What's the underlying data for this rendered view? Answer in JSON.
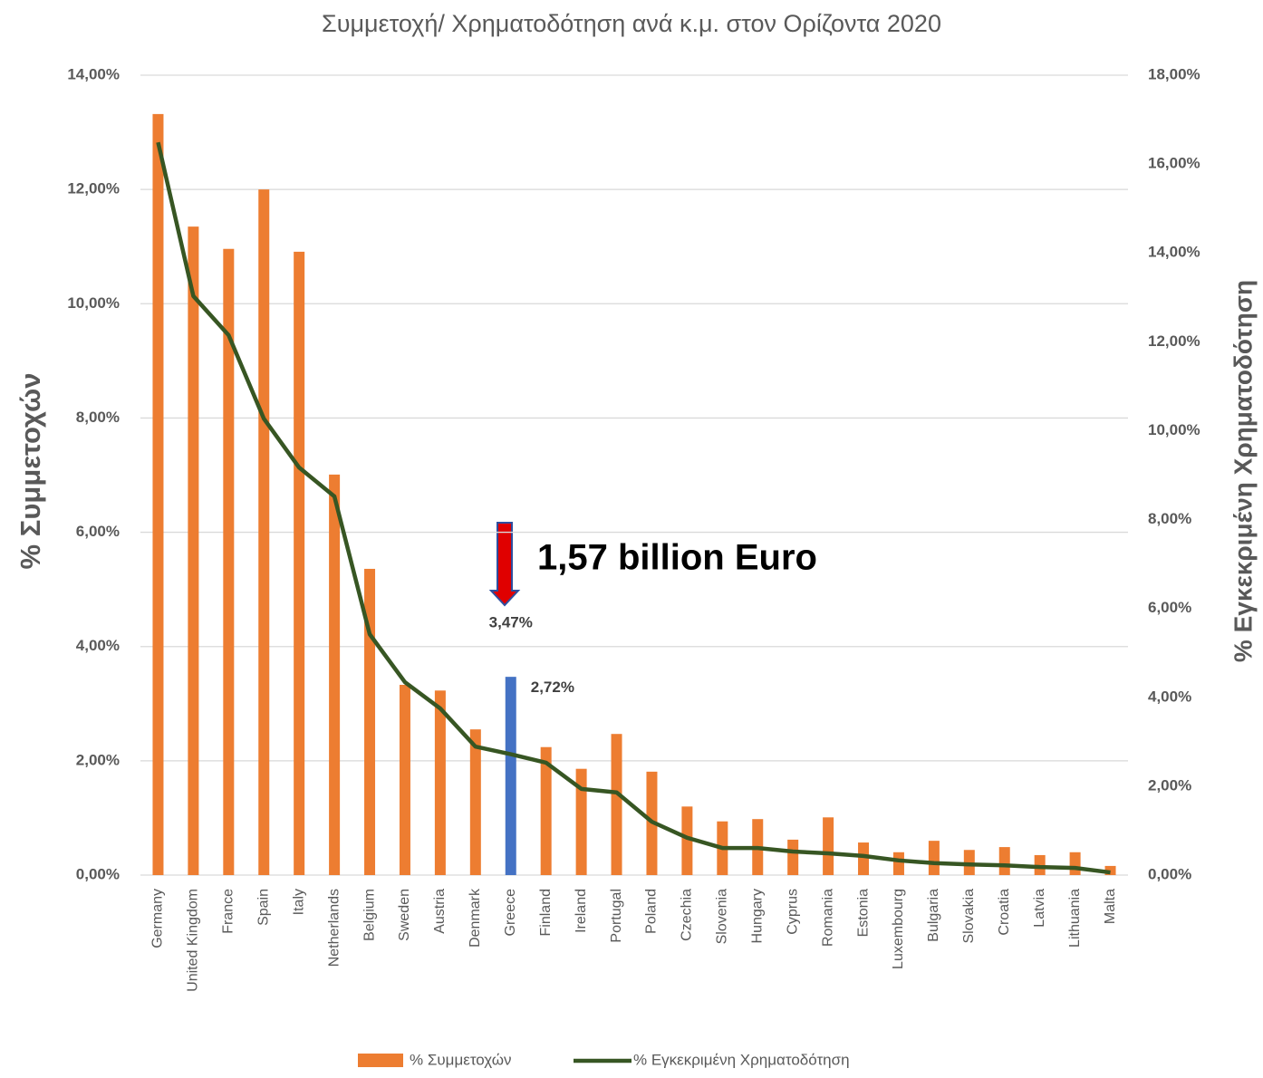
{
  "chart_data": {
    "type": "bar_line",
    "title": "Συμμετοχή/ Χρηματοδότηση ανά κ.μ. στον Ορίζοντα 2020",
    "y_label": "% Συμμετοχών",
    "y2_label": "% Εγκεκριμένη Χρηματοδότηση",
    "annotation": "1,57 billion Euro",
    "categories": [
      "Germany",
      "United Kingdom",
      "France",
      "Spain",
      "Italy",
      "Netherlands",
      "Belgium",
      "Sweden",
      "Austria",
      "Denmark",
      "Greece",
      "Finland",
      "Ireland",
      "Portugal",
      "Poland",
      "Czechia",
      "Slovenia",
      "Hungary",
      "Cyprus",
      "Romania",
      "Estonia",
      "Luxembourg",
      "Bulgaria",
      "Slovakia",
      "Croatia",
      "Latvia",
      "Lithuania",
      "Malta"
    ],
    "series": [
      {
        "name": "% Συμμετοχών",
        "type": "bar",
        "color": "#ed7d31",
        "colors": [
          "#ed7d31",
          "#ed7d31",
          "#ed7d31",
          "#ed7d31",
          "#ed7d31",
          "#ed7d31",
          "#ed7d31",
          "#ed7d31",
          "#ed7d31",
          "#ed7d31",
          "#4472c4",
          "#ed7d31",
          "#ed7d31",
          "#ed7d31",
          "#ed7d31",
          "#ed7d31",
          "#ed7d31",
          "#ed7d31",
          "#ed7d31",
          "#ed7d31",
          "#ed7d31",
          "#ed7d31",
          "#ed7d31",
          "#ed7d31",
          "#ed7d31",
          "#ed7d31",
          "#ed7d31",
          "#ed7d31"
        ],
        "values": [
          13.32,
          11.35,
          10.96,
          12.0,
          10.91,
          7.01,
          5.36,
          3.33,
          3.23,
          2.55,
          3.47,
          2.24,
          1.86,
          2.47,
          1.81,
          1.2,
          0.94,
          0.98,
          0.62,
          1.01,
          0.57,
          0.4,
          0.6,
          0.44,
          0.49,
          0.35,
          0.4,
          0.16
        ],
        "value_labels": [
          null,
          null,
          null,
          null,
          null,
          null,
          null,
          null,
          null,
          null,
          "3,47%",
          null,
          null,
          null,
          null,
          null,
          null,
          null,
          null,
          null,
          null,
          null,
          null,
          null,
          null,
          null,
          null,
          null
        ]
      },
      {
        "name": "% Εγκεκριμένη Χρηματοδότηση",
        "type": "line",
        "color": "#375623",
        "axis": "y2",
        "values": [
          16.49,
          13.03,
          12.15,
          10.27,
          9.17,
          8.52,
          5.42,
          4.34,
          3.75,
          2.89,
          2.72,
          2.53,
          1.94,
          1.86,
          1.2,
          0.84,
          0.61,
          0.61,
          0.53,
          0.49,
          0.43,
          0.33,
          0.27,
          0.24,
          0.22,
          0.18,
          0.16,
          0.06
        ],
        "value_labels": [
          null,
          null,
          null,
          null,
          null,
          null,
          null,
          null,
          null,
          null,
          "2,72%",
          null,
          null,
          null,
          null,
          null,
          null,
          null,
          null,
          null,
          null,
          null,
          null,
          null,
          null,
          null,
          null,
          null
        ]
      }
    ],
    "ylim": [
      0,
      14
    ],
    "yticks": [
      {
        "value": 0,
        "label": "0,00%"
      },
      {
        "value": 2,
        "label": "2,00%"
      },
      {
        "value": 4,
        "label": "4,00%"
      },
      {
        "value": 6,
        "label": "6,00%"
      },
      {
        "value": 8,
        "label": "8,00%"
      },
      {
        "value": 10,
        "label": "10,00%"
      },
      {
        "value": 12,
        "label": "12,00%"
      },
      {
        "value": 14,
        "label": "14,00%"
      }
    ],
    "y2lim": [
      0,
      18
    ],
    "y2ticks": [
      {
        "value": 0,
        "label": "0,00%"
      },
      {
        "value": 2,
        "label": "2,00%"
      },
      {
        "value": 4,
        "label": "4,00%"
      },
      {
        "value": 6,
        "label": "6,00%"
      },
      {
        "value": 8,
        "label": "8,00%"
      },
      {
        "value": 10,
        "label": "10,00%"
      },
      {
        "value": 12,
        "label": "12,00%"
      },
      {
        "value": 14,
        "label": "14,00%"
      },
      {
        "value": 16,
        "label": "16,00%"
      },
      {
        "value": 18,
        "label": "18,00%"
      }
    ],
    "grid": true,
    "legend": "bottom"
  }
}
